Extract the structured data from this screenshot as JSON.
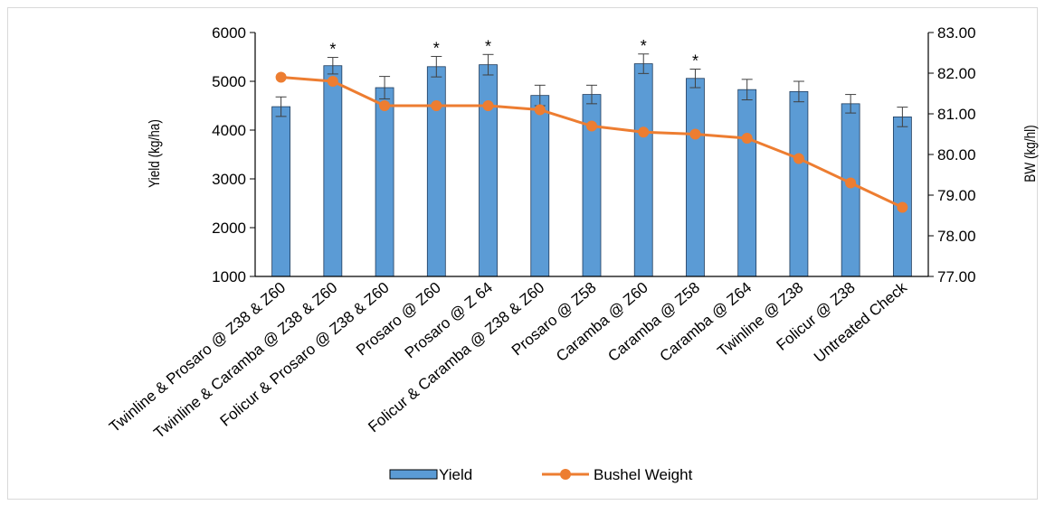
{
  "chart_data": {
    "type": "bar",
    "categories": [
      "Twinline & Prosaro @ Z38 & Z60",
      "Twinline & Caramba @ Z38 & Z60",
      "Folicur & Prosaro @ Z38 & Z60",
      "Prosaro @ Z60",
      "Prosaro @ Z 64",
      "Folicur & Caramba @ Z38 & Z60",
      "Prosaro @ Z58",
      "Caramba @ Z60",
      "Caramba @ Z58",
      "Caramba @ Z64",
      "Twinline @ Z38",
      "Folicur @ Z38",
      "Untreated Check"
    ],
    "series": [
      {
        "name": "Yield",
        "type": "bar",
        "axis": "left",
        "color": "#5B9BD5",
        "values": [
          4480,
          5320,
          4870,
          5300,
          5340,
          4710,
          4730,
          5360,
          5060,
          4830,
          4790,
          4540,
          4270
        ],
        "error": [
          200,
          170,
          230,
          210,
          210,
          210,
          190,
          200,
          190,
          210,
          210,
          190,
          200
        ],
        "significant": [
          "",
          "*",
          "",
          "*",
          "*",
          "",
          "",
          "*",
          "*",
          "",
          "",
          "",
          ""
        ]
      },
      {
        "name": "Bushel Weight",
        "type": "line",
        "axis": "right",
        "color": "#ED7D31",
        "values": [
          81.9,
          81.8,
          81.2,
          81.2,
          81.2,
          81.1,
          80.7,
          80.55,
          80.5,
          80.4,
          79.9,
          79.3,
          78.7
        ]
      }
    ],
    "ylabel": "Yield (kg/ha)",
    "y2label": "BW (kg/hl)",
    "ylim": [
      1000,
      6000
    ],
    "y2lim": [
      77,
      83
    ],
    "yticks": [
      "1000",
      "2000",
      "3000",
      "4000",
      "5000",
      "6000"
    ],
    "y2ticks": [
      "77.00",
      "78.00",
      "79.00",
      "80.00",
      "81.00",
      "82.00",
      "83.00"
    ],
    "legend": {
      "placement": "bottom",
      "entries": [
        "Yield",
        "Bushel Weight"
      ]
    },
    "grid": false
  }
}
